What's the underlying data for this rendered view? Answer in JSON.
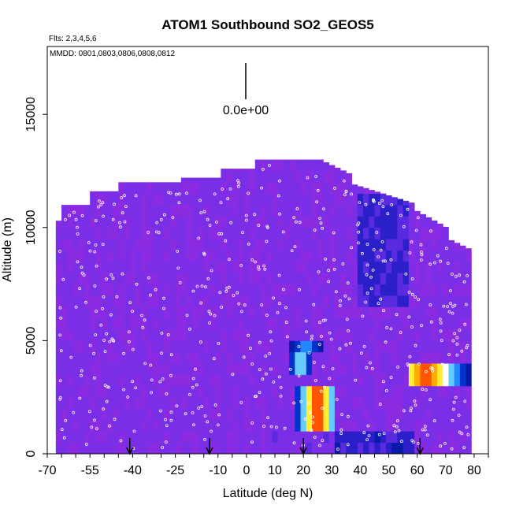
{
  "chart_data": {
    "type": "heatmap",
    "title": "ATOM1 Southbound SO2_GEOS5",
    "subtitle_flights": "Flts: 2,3,4,5,6",
    "subtitle_dates": "MMDD: 0801,0803,0806,0808,0812",
    "xlabel": "Latitude (deg N)",
    "ylabel": "Altitude (m)",
    "xlim": [
      -70,
      85
    ],
    "ylim": [
      0,
      18000
    ],
    "x_ticks": [
      -70,
      -55,
      -40,
      -25,
      -10,
      0,
      10,
      20,
      30,
      40,
      50,
      60,
      70,
      80
    ],
    "y_ticks": [
      0,
      5000,
      10000,
      15000
    ],
    "x_tick_labels": [
      "-70",
      "-55",
      "-40",
      "-25",
      "-10",
      "0",
      "10",
      "20",
      "30",
      "40",
      "50",
      "60",
      "70",
      "80"
    ],
    "y_tick_labels": [
      "0",
      "5000",
      "10000",
      "15000"
    ],
    "scale_label": "0.0e+00",
    "background_color": "#8a2be2",
    "arrow_latitudes": [
      -41,
      -13,
      20,
      61
    ],
    "hotspots": [
      {
        "lat_min": 16,
        "lat_max": 30,
        "alt_min": 800,
        "alt_max": 3000,
        "peak_lat": 24,
        "intensity": 1.0
      },
      {
        "lat_min": 14,
        "lat_max": 22,
        "alt_min": 3500,
        "alt_max": 4300,
        "peak_lat": 18,
        "intensity": 0.55
      },
      {
        "lat_min": 56,
        "lat_max": 78,
        "alt_min": 3000,
        "alt_max": 3600,
        "peak_lat": 62,
        "intensity": 0.9
      },
      {
        "lat_min": 15,
        "lat_max": 27,
        "alt_min": 4500,
        "alt_max": 5000,
        "peak_lat": 20,
        "intensity": 0.35
      }
    ],
    "grid": false,
    "legend": "none"
  }
}
